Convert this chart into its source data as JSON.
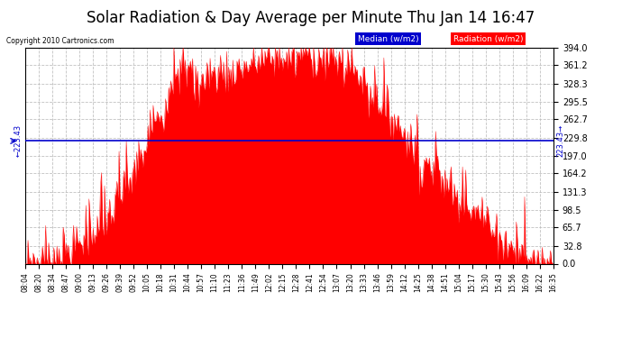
{
  "title": "Solar Radiation & Day Average per Minute Thu Jan 14 16:47",
  "copyright": "Copyright 2010 Cartronics.com",
  "median_value": 223.43,
  "y_max": 394.0,
  "y_min": 0.0,
  "y_ticks": [
    0.0,
    32.8,
    65.7,
    98.5,
    131.3,
    164.2,
    197.0,
    229.8,
    262.7,
    295.5,
    328.3,
    361.2,
    394.0
  ],
  "x_labels": [
    "08:04",
    "08:20",
    "08:34",
    "08:47",
    "09:00",
    "09:13",
    "09:26",
    "09:39",
    "09:52",
    "10:05",
    "10:18",
    "10:31",
    "10:44",
    "10:57",
    "11:10",
    "11:23",
    "11:36",
    "11:49",
    "12:02",
    "12:15",
    "12:28",
    "12:41",
    "12:54",
    "13:07",
    "13:20",
    "13:33",
    "13:46",
    "13:59",
    "14:12",
    "14:25",
    "14:38",
    "14:51",
    "15:04",
    "15:17",
    "15:30",
    "15:43",
    "15:56",
    "16:09",
    "16:22",
    "16:35"
  ],
  "radiation_color": "#FF0000",
  "median_color": "#0000CC",
  "background_color": "#FFFFFF",
  "plot_bg_color": "#FFFFFF",
  "grid_color": "#BBBBBB",
  "title_fontsize": 12,
  "legend_median_bg": "#0000CC",
  "legend_radiation_bg": "#FF0000"
}
